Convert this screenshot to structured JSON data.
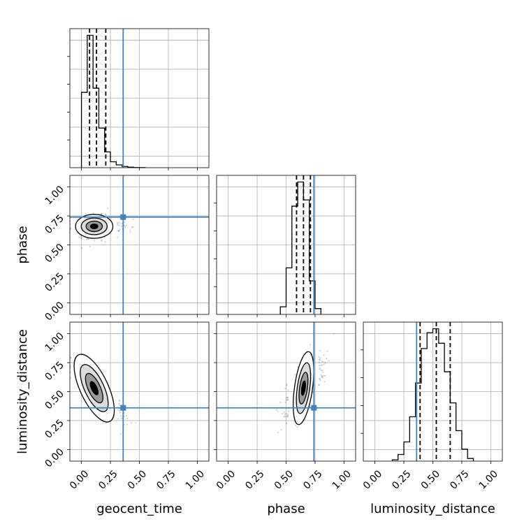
{
  "chart_data": {
    "type": "corner",
    "parameters": [
      "geocent_time",
      "phase",
      "luminosity_distance"
    ],
    "ticks": [
      0.0,
      0.25,
      0.5,
      0.75,
      1.0
    ],
    "tick_labels": [
      "0.00",
      "0.25",
      "0.50",
      "0.75",
      "1.00"
    ],
    "range": [
      -0.1,
      1.1
    ],
    "grid": true,
    "colors": {
      "truth": "#4682b4",
      "hist": "#000000"
    },
    "truths": {
      "geocent_time": 0.36,
      "phase": 0.74,
      "luminosity_distance": 0.36
    },
    "quantiles": {
      "geocent_time": [
        0.07,
        0.13,
        0.21
      ],
      "phase": [
        0.59,
        0.65,
        0.71
      ],
      "luminosity_distance": [
        0.39,
        0.53,
        0.65
      ]
    },
    "histograms": {
      "geocent_time": {
        "bin_edges": [
          0.0,
          0.05,
          0.1,
          0.15,
          0.2,
          0.25,
          0.3,
          0.35,
          0.4,
          0.45,
          0.5,
          0.55
        ],
        "counts": [
          2150,
          3780,
          2270,
          1130,
          450,
          170,
          80,
          35,
          15,
          5,
          2
        ]
      },
      "phase": {
        "bin_edges": [
          0.45,
          0.5,
          0.55,
          0.6,
          0.65,
          0.7,
          0.75,
          0.8
        ],
        "counts": [
          170,
          1040,
          2420,
          2960,
          2560,
          750,
          130
        ]
      },
      "luminosity_distance": {
        "bin_edges": [
          0.15,
          0.2,
          0.25,
          0.3,
          0.35,
          0.4,
          0.45,
          0.5,
          0.55,
          0.6,
          0.65,
          0.7,
          0.75,
          0.8,
          0.85
        ],
        "counts": [
          20,
          100,
          290,
          670,
          1180,
          1700,
          1940,
          2000,
          1780,
          1350,
          880,
          460,
          180,
          40
        ]
      }
    },
    "pairs": [
      {
        "x": "geocent_time",
        "y": "phase",
        "center": [
          0.11,
          0.66
        ],
        "spread": [
          0.07,
          0.045
        ],
        "rho": 0.0
      },
      {
        "x": "geocent_time",
        "y": "luminosity_distance",
        "center": [
          0.11,
          0.53
        ],
        "spread": [
          0.07,
          0.12
        ],
        "rho": -0.85
      },
      {
        "x": "phase",
        "y": "luminosity_distance",
        "center": [
          0.65,
          0.53
        ],
        "spread": [
          0.045,
          0.12
        ],
        "rho": 0.6
      }
    ]
  }
}
